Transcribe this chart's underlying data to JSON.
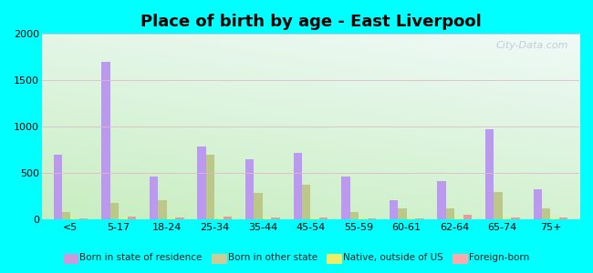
{
  "title": "Place of birth by age - East Liverpool",
  "categories": [
    "<5",
    "5-17",
    "18-24",
    "25-34",
    "35-44",
    "45-54",
    "55-59",
    "60-61",
    "62-64",
    "65-74",
    "75+"
  ],
  "series": {
    "Born in state of residence": [
      700,
      1700,
      460,
      780,
      650,
      720,
      460,
      200,
      415,
      975,
      320
    ],
    "Born in other state": [
      80,
      175,
      200,
      700,
      280,
      370,
      75,
      120,
      120,
      290,
      115
    ],
    "Native, outside of US": [
      20,
      20,
      15,
      20,
      15,
      20,
      15,
      15,
      15,
      20,
      15
    ],
    "Foreign-born": [
      10,
      25,
      20,
      25,
      20,
      20,
      10,
      10,
      50,
      20,
      20
    ]
  },
  "colors": {
    "Born in state of residence": "#bb99ee",
    "Born in other state": "#bbc888",
    "Native, outside of US": "#eeee88",
    "Foreign-born": "#ee9999"
  },
  "legend_colors": {
    "Born in state of residence": "#cc99dd",
    "Born in other state": "#cccc99",
    "Native, outside of US": "#eeee66",
    "Foreign-born": "#ffaaaa"
  },
  "ylim": [
    0,
    2000
  ],
  "yticks": [
    0,
    500,
    1000,
    1500,
    2000
  ],
  "bg_top_color": "#f0faf8",
  "bg_bottom_color": "#c8eec0",
  "outer_background": "#00ffff",
  "bar_width": 0.18,
  "watermark": "City-Data.com",
  "grid_color": "#ddbbcc",
  "title_fontsize": 13
}
